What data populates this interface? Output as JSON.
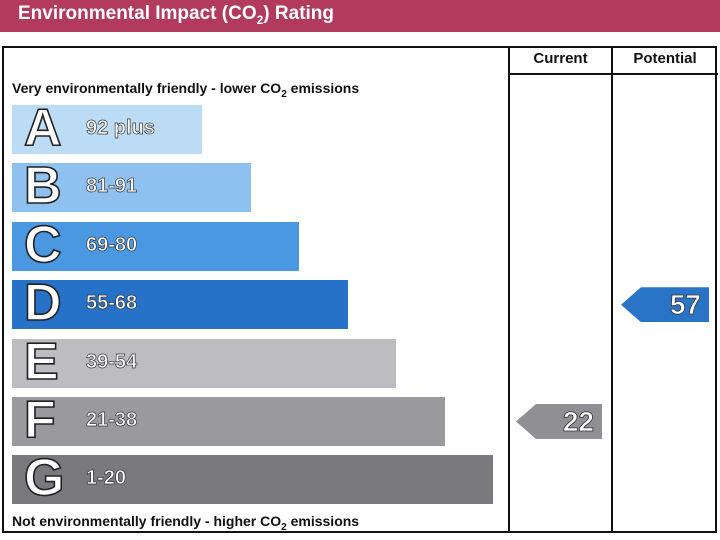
{
  "header": {
    "title_pre": "Environmental Impact (CO",
    "title_sub": "2",
    "title_post": ") Rating",
    "color": "#b23a5c"
  },
  "columns": {
    "current": "Current",
    "potential": "Potential"
  },
  "captions": {
    "top_pre": "Very environmentally friendly - lower CO",
    "top_sub": "2",
    "top_post": " emissions",
    "bottom_pre": "Not environmentally friendly - higher CO",
    "bottom_sub": "2",
    "bottom_post": " emissions"
  },
  "chart_data": {
    "type": "bar",
    "title": "Environmental Impact (CO2) Rating",
    "categories": [
      "A",
      "B",
      "C",
      "D",
      "E",
      "F",
      "G"
    ],
    "ranges": [
      "92 plus",
      "81-91",
      "69-80",
      "55-68",
      "39-54",
      "21-38",
      "1-20"
    ],
    "colors": [
      "#bcdcf5",
      "#8ec1f0",
      "#4a98e2",
      "#2672c9",
      "#bdbdc1",
      "#9a9a9e",
      "#7a7a7e"
    ],
    "current": {
      "value": 22,
      "band": "F",
      "color": "#909094"
    },
    "potential": {
      "value": 57,
      "band": "D",
      "color": "#2a74c8"
    }
  }
}
